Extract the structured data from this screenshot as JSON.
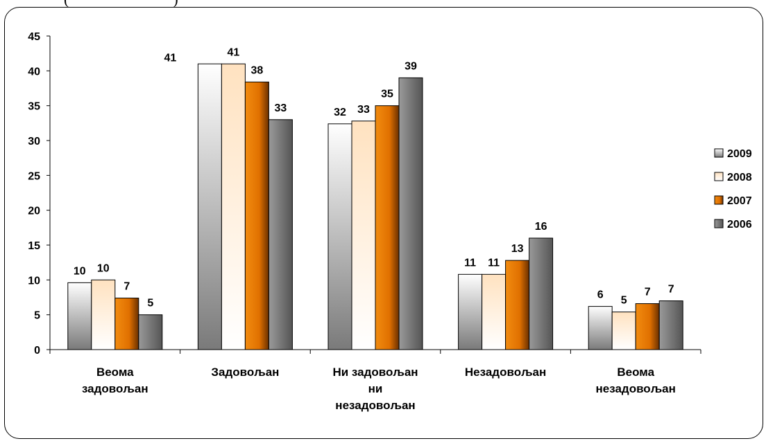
{
  "top_fragment": "(",
  "top_fragment_right": ")",
  "chart_data": {
    "type": "bar",
    "categories": [
      [
        "Веома",
        "задовољан"
      ],
      [
        "Задовољан"
      ],
      [
        "Ни задовољан",
        "ни",
        "незадовољан"
      ],
      [
        "Незадовољан"
      ],
      [
        "Веома",
        "незадовољан"
      ]
    ],
    "series": [
      {
        "name": "2009",
        "values": [
          9.6,
          41.0,
          32.4,
          10.8,
          6.2
        ],
        "labels": [
          "10",
          "41",
          "32",
          "11",
          "6"
        ],
        "color": "#e8e8e8"
      },
      {
        "name": "2008",
        "values": [
          10.0,
          41.0,
          32.8,
          10.8,
          5.4
        ],
        "labels": [
          "10",
          "41",
          "33",
          "11",
          "5"
        ],
        "color": "#ffd7a8"
      },
      {
        "name": "2007",
        "values": [
          7.4,
          38.4,
          35.0,
          12.8,
          6.6
        ],
        "labels": [
          "7",
          "38",
          "35",
          "13",
          "7"
        ],
        "color": "#e07800"
      },
      {
        "name": "2006",
        "values": [
          5.0,
          33.0,
          39.0,
          16.0,
          7.0
        ],
        "labels": [
          "5",
          "33",
          "39",
          "16",
          "7"
        ],
        "color": "#7f7f7f"
      }
    ],
    "ylim": [
      0,
      45
    ],
    "yticks": [
      "0",
      "5",
      "10",
      "15",
      "20",
      "25",
      "30",
      "35",
      "40",
      "45"
    ],
    "grid": false,
    "legend_position": "right"
  }
}
